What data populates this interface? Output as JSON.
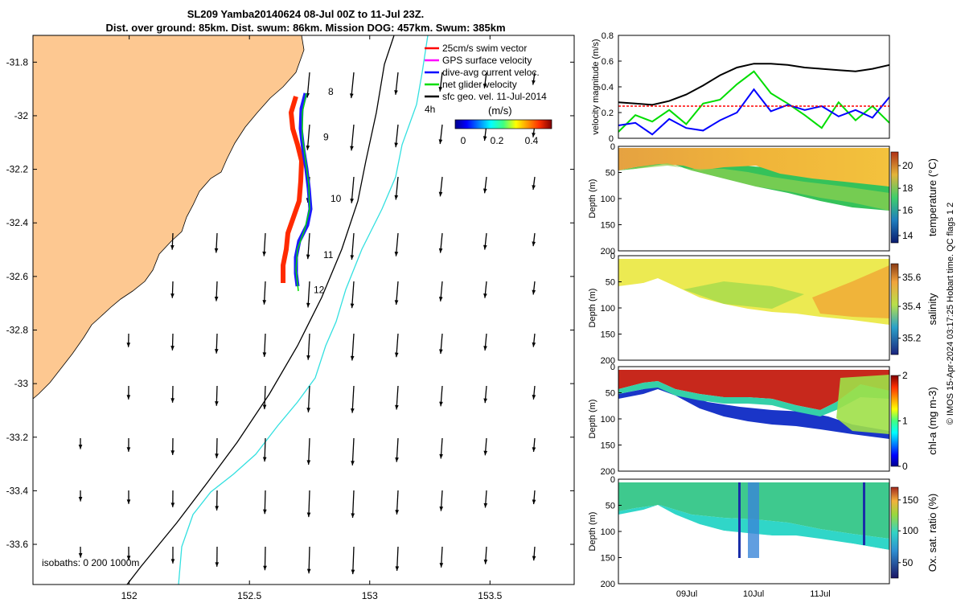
{
  "chart_data": [
    {
      "type": "map",
      "title_line1": "SL209 Yamba20140624 08-Jul 00Z to 11-Jul 23Z.",
      "title_line2": "Dist. over ground: 85km. Dist. swum: 86km. Mission DOG: 457km. Swum: 385km",
      "xlim": [
        151.6,
        153.85
      ],
      "ylim": [
        -33.75,
        -31.7
      ],
      "x_ticks": [
        152,
        152.5,
        153,
        153.5
      ],
      "x_tick_labels": [
        "152",
        "152.5",
        "153",
        "153.5"
      ],
      "y_ticks": [
        -31.8,
        -32,
        -32.2,
        -32.4,
        -32.6,
        -32.8,
        -33,
        -33.2,
        -33.4,
        -33.6
      ],
      "y_tick_labels": [
        "-31.8",
        "-32",
        "-32.2",
        "-32.4",
        "-32.6",
        "-32.8",
        "-33",
        "-33.2",
        "-33.4",
        "-33.6"
      ],
      "legend": [
        {
          "label": "25cm/s swim vector",
          "color": "#ff0000"
        },
        {
          "label": "GPS surface velocity",
          "color": "#ff00ff"
        },
        {
          "label": "dive-avg current veloc.",
          "color": "#0000ff"
        },
        {
          "label": "net glider velocity",
          "color": "#00dd00"
        },
        {
          "label": "sfc geo. vel. 11-Jul-2014",
          "color": "#000000"
        }
      ],
      "colorbar_label": "(m/s)",
      "colorbar_ticks": [
        "0",
        "0.2",
        "0.4"
      ],
      "isobath_label": "isobaths: 0   200  1000m",
      "isobath_marker": "4h",
      "day_labels": [
        {
          "day": "8",
          "lon": 152.78,
          "lat": -31.91
        },
        {
          "day": "9",
          "lon": 152.76,
          "lat": -32.08
        },
        {
          "day": "10",
          "lon": 152.79,
          "lat": -32.31
        },
        {
          "day": "11",
          "lon": 152.76,
          "lat": -32.52
        },
        {
          "day": "12",
          "lon": 152.72,
          "lat": -32.65
        }
      ],
      "glider_track": [
        [
          152.78,
          -31.92
        ],
        [
          152.75,
          -31.96
        ],
        [
          152.74,
          -32.05
        ],
        [
          152.76,
          -32.15
        ],
        [
          152.78,
          -32.25
        ],
        [
          152.79,
          -32.35
        ],
        [
          152.76,
          -32.45
        ],
        [
          152.73,
          -32.55
        ],
        [
          152.72,
          -32.63
        ]
      ]
    },
    {
      "type": "line",
      "ylabel": "velocity magnitude (m/s)",
      "ylim": [
        0,
        0.8
      ],
      "y_ticks": [
        "0",
        "0.2",
        "0.4",
        "0.6",
        "0.8"
      ],
      "x": [
        8.0,
        8.25,
        8.5,
        8.75,
        9.0,
        9.25,
        9.5,
        9.75,
        10.0,
        10.25,
        10.5,
        10.75,
        11.0,
        11.25,
        11.5,
        11.75,
        12.0
      ],
      "series": [
        {
          "color": "#000000",
          "values": [
            0.28,
            0.27,
            0.26,
            0.29,
            0.34,
            0.41,
            0.49,
            0.55,
            0.58,
            0.58,
            0.57,
            0.55,
            0.54,
            0.53,
            0.52,
            0.54,
            0.57
          ]
        },
        {
          "color": "#00dd00",
          "values": [
            0.05,
            0.18,
            0.13,
            0.22,
            0.11,
            0.27,
            0.3,
            0.42,
            0.52,
            0.35,
            0.27,
            0.18,
            0.08,
            0.28,
            0.14,
            0.25,
            0.12
          ]
        },
        {
          "color": "#0000ff",
          "values": [
            0.1,
            0.12,
            0.03,
            0.15,
            0.08,
            0.06,
            0.14,
            0.2,
            0.38,
            0.21,
            0.26,
            0.22,
            0.25,
            0.17,
            0.22,
            0.16,
            0.32
          ]
        },
        {
          "color": "#ff0000",
          "values": [
            0.25,
            0.25,
            0.25,
            0.25,
            0.25,
            0.25,
            0.25,
            0.25,
            0.25,
            0.25,
            0.25,
            0.25,
            0.25,
            0.25,
            0.25,
            0.25,
            0.25
          ]
        }
      ]
    },
    {
      "type": "heatmap",
      "ylabel": "Depth (m)",
      "y_ticks": [
        "0",
        "50",
        "100",
        "150",
        "200"
      ],
      "colorbar_label": "temperature (°C)",
      "colorbar_ticks": [
        "14",
        "16",
        "18",
        "20"
      ]
    },
    {
      "type": "heatmap",
      "ylabel": "Depth (m)",
      "y_ticks": [
        "0",
        "50",
        "100",
        "150",
        "200"
      ],
      "colorbar_label": "salinity",
      "colorbar_ticks": [
        "35.2",
        "35.4",
        "35.6"
      ]
    },
    {
      "type": "heatmap",
      "ylabel": "Depth (m)",
      "y_ticks": [
        "0",
        "50",
        "100",
        "150",
        "200"
      ],
      "colorbar_label": "chl-a (mg m-3)",
      "colorbar_ticks": [
        "0",
        "1",
        "2"
      ]
    },
    {
      "type": "heatmap",
      "ylabel": "Depth (m)",
      "y_ticks": [
        "0",
        "50",
        "100",
        "150",
        "200"
      ],
      "colorbar_label": "Ox. sat. ratio (%)",
      "colorbar_ticks": [
        "50",
        "100",
        "150"
      ],
      "x_tick_labels": [
        "09Jul",
        "10Jul",
        "11Jul"
      ]
    }
  ],
  "side_note": "© IMOS 15-Apr-2024 03:17:25 Hobart time. QC flags 1  2"
}
